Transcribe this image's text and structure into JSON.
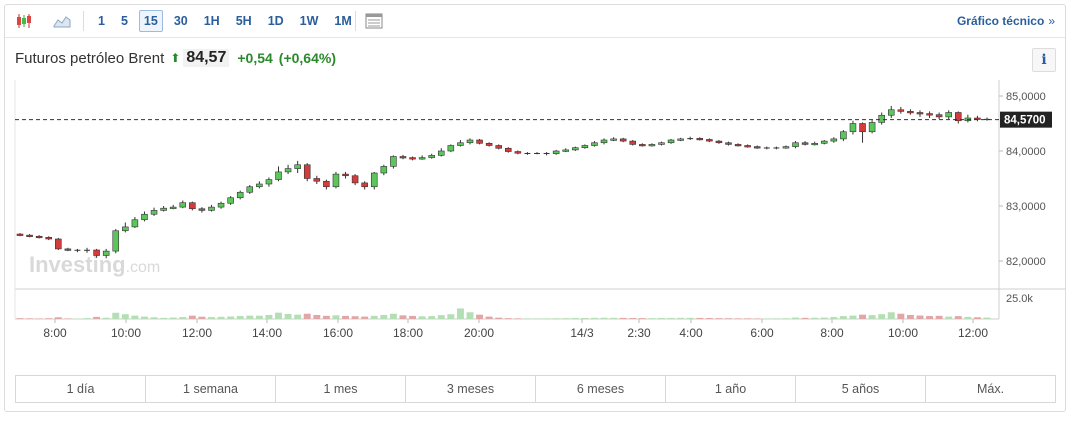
{
  "toolbar": {
    "intervals": [
      "1",
      "5",
      "15",
      "30",
      "1H",
      "5H",
      "1D",
      "1W",
      "1M"
    ],
    "active_interval": "15",
    "technical_link": "Gráfico técnico",
    "technical_arrow": "»"
  },
  "header": {
    "instrument": "Futuros petróleo Brent",
    "price": "84,57",
    "change": "+0,54",
    "change_pct": "(+0,64%)",
    "info_label": "i"
  },
  "watermark": {
    "brand": "Investing",
    "suffix": ".com"
  },
  "chart_data": {
    "type": "candlestick",
    "x_ticks": [
      "8:00",
      "10:00",
      "12:00",
      "14:00",
      "16:00",
      "18:00",
      "20:00",
      "14/3",
      "2:30",
      "4:00",
      "6:00",
      "8:00",
      "10:00",
      "12:00"
    ],
    "y_ticks": [
      "85,0000",
      "84,0000",
      "83,0000",
      "82,0000"
    ],
    "y_tick_values": [
      85,
      84,
      83,
      82
    ],
    "ylim": [
      81.55,
      85.3
    ],
    "last_price_label": "84,5700",
    "last_price": 84.57,
    "volume_tick": "25.0k",
    "volume_tick_value": 25000,
    "colors": {
      "up": "#5cc55c",
      "down": "#d23c3c",
      "doji": "#444444",
      "vol_up": "#b4dfb4",
      "vol_down": "#e3a6a6"
    },
    "candles": [
      [
        82.49,
        82.47,
        82.51,
        82.45
      ],
      [
        82.47,
        82.45,
        82.49,
        82.43
      ],
      [
        82.45,
        82.43,
        82.47,
        82.41
      ],
      [
        82.43,
        82.4,
        82.45,
        82.38
      ],
      [
        82.4,
        82.22,
        82.42,
        82.2
      ],
      [
        82.22,
        82.2,
        82.24,
        82.18
      ],
      [
        82.2,
        82.19,
        82.22,
        82.16
      ],
      [
        82.19,
        82.2,
        82.24,
        82.15
      ],
      [
        82.2,
        82.1,
        82.22,
        82.06
      ],
      [
        82.1,
        82.18,
        82.22,
        82.05
      ],
      [
        82.18,
        82.55,
        82.58,
        82.14
      ],
      [
        82.55,
        82.62,
        82.7,
        82.52
      ],
      [
        82.62,
        82.75,
        82.8,
        82.6
      ],
      [
        82.75,
        82.85,
        82.9,
        82.72
      ],
      [
        82.85,
        82.92,
        82.97,
        82.82
      ],
      [
        82.92,
        82.96,
        83.0,
        82.9
      ],
      [
        82.96,
        82.98,
        83.02,
        82.94
      ],
      [
        82.98,
        83.06,
        83.1,
        82.96
      ],
      [
        83.06,
        82.95,
        83.08,
        82.92
      ],
      [
        82.95,
        82.92,
        82.98,
        82.88
      ],
      [
        82.92,
        82.98,
        83.02,
        82.9
      ],
      [
        82.98,
        83.05,
        83.08,
        82.95
      ],
      [
        83.05,
        83.15,
        83.18,
        83.02
      ],
      [
        83.15,
        83.25,
        83.28,
        83.12
      ],
      [
        83.25,
        83.35,
        83.38,
        83.22
      ],
      [
        83.35,
        83.4,
        83.45,
        83.32
      ],
      [
        83.4,
        83.48,
        83.52,
        83.35
      ],
      [
        83.48,
        83.62,
        83.72,
        83.45
      ],
      [
        83.62,
        83.68,
        83.75,
        83.58
      ],
      [
        83.68,
        83.75,
        83.82,
        83.6
      ],
      [
        83.75,
        83.5,
        83.78,
        83.45
      ],
      [
        83.5,
        83.45,
        83.55,
        83.4
      ],
      [
        83.45,
        83.35,
        83.48,
        83.3
      ],
      [
        83.35,
        83.58,
        83.62,
        83.32
      ],
      [
        83.58,
        83.55,
        83.62,
        83.5
      ],
      [
        83.55,
        83.42,
        83.58,
        83.38
      ],
      [
        83.42,
        83.35,
        83.45,
        83.3
      ],
      [
        83.35,
        83.6,
        83.62,
        83.3
      ],
      [
        83.6,
        83.72,
        83.75,
        83.56
      ],
      [
        83.72,
        83.9,
        83.92,
        83.68
      ],
      [
        83.9,
        83.88,
        83.93,
        83.85
      ],
      [
        83.88,
        83.86,
        83.9,
        83.83
      ],
      [
        83.86,
        83.88,
        83.92,
        83.84
      ],
      [
        83.88,
        83.92,
        83.95,
        83.86
      ],
      [
        83.92,
        84.0,
        84.05,
        83.9
      ],
      [
        84.0,
        84.1,
        84.12,
        83.98
      ],
      [
        84.1,
        84.15,
        84.2,
        84.08
      ],
      [
        84.15,
        84.2,
        84.23,
        84.12
      ],
      [
        84.2,
        84.14,
        84.22,
        84.12
      ],
      [
        84.14,
        84.1,
        84.16,
        84.08
      ],
      [
        84.1,
        84.05,
        84.12,
        84.03
      ],
      [
        84.05,
        83.99,
        84.07,
        83.97
      ],
      [
        83.99,
        83.96,
        84.01,
        83.94
      ],
      [
        83.96,
        83.95,
        83.98,
        83.93
      ],
      [
        83.95,
        83.96,
        83.98,
        83.94
      ],
      [
        83.96,
        83.95,
        83.98,
        83.92
      ],
      [
        83.95,
        84.0,
        84.02,
        83.93
      ],
      [
        84.0,
        84.02,
        84.05,
        83.98
      ],
      [
        84.02,
        84.06,
        84.08,
        84.0
      ],
      [
        84.06,
        84.1,
        84.12,
        84.04
      ],
      [
        84.1,
        84.15,
        84.18,
        84.08
      ],
      [
        84.15,
        84.2,
        84.23,
        84.12
      ],
      [
        84.2,
        84.22,
        84.25,
        84.18
      ],
      [
        84.22,
        84.18,
        84.24,
        84.16
      ],
      [
        84.18,
        84.12,
        84.2,
        84.1
      ],
      [
        84.12,
        84.1,
        84.14,
        84.08
      ],
      [
        84.1,
        84.12,
        84.14,
        84.08
      ],
      [
        84.12,
        84.15,
        84.17,
        84.1
      ],
      [
        84.15,
        84.2,
        84.22,
        84.13
      ],
      [
        84.2,
        84.22,
        84.24,
        84.18
      ],
      [
        84.22,
        84.23,
        84.26,
        84.2
      ],
      [
        84.23,
        84.21,
        84.25,
        84.19
      ],
      [
        84.21,
        84.18,
        84.23,
        84.16
      ],
      [
        84.18,
        84.15,
        84.2,
        84.13
      ],
      [
        84.15,
        84.12,
        84.17,
        84.1
      ],
      [
        84.12,
        84.1,
        84.14,
        84.08
      ],
      [
        84.1,
        84.08,
        84.12,
        84.06
      ],
      [
        84.08,
        84.06,
        84.1,
        84.04
      ],
      [
        84.06,
        84.05,
        84.08,
        84.03
      ],
      [
        84.05,
        84.06,
        84.08,
        84.03
      ],
      [
        84.06,
        84.08,
        84.1,
        84.04
      ],
      [
        84.08,
        84.15,
        84.18,
        84.05
      ],
      [
        84.15,
        84.12,
        84.18,
        84.1
      ],
      [
        84.12,
        84.14,
        84.17,
        84.1
      ],
      [
        84.14,
        84.18,
        84.2,
        84.12
      ],
      [
        84.18,
        84.22,
        84.25,
        84.15
      ],
      [
        84.22,
        84.35,
        84.38,
        84.18
      ],
      [
        84.35,
        84.5,
        84.55,
        84.3
      ],
      [
        84.5,
        84.35,
        84.52,
        84.15
      ],
      [
        84.35,
        84.52,
        84.56,
        84.32
      ],
      [
        84.52,
        84.65,
        84.7,
        84.48
      ],
      [
        84.65,
        84.75,
        84.82,
        84.6
      ],
      [
        84.75,
        84.72,
        84.8,
        84.68
      ],
      [
        84.72,
        84.7,
        84.76,
        84.66
      ],
      [
        84.7,
        84.68,
        84.74,
        84.62
      ],
      [
        84.68,
        84.66,
        84.72,
        84.6
      ],
      [
        84.66,
        84.62,
        84.7,
        84.58
      ],
      [
        84.62,
        84.7,
        84.74,
        84.58
      ],
      [
        84.7,
        84.55,
        84.72,
        84.5
      ],
      [
        84.55,
        84.6,
        84.66,
        84.52
      ],
      [
        84.6,
        84.58,
        84.64,
        84.54
      ],
      [
        84.58,
        84.57,
        84.61,
        84.55
      ]
    ],
    "volumes": [
      900,
      700,
      600,
      800,
      1800,
      600,
      500,
      900,
      2200,
      1300,
      6500,
      5000,
      3500,
      2500,
      1800,
      1200,
      1500,
      2000,
      3500,
      2400,
      2000,
      2300,
      2600,
      3100,
      3500,
      3400,
      4200,
      6600,
      5200,
      4500,
      5500,
      4200,
      3300,
      3800,
      3200,
      2900,
      2500,
      3300,
      4200,
      5500,
      3800,
      3200,
      2800,
      3000,
      4000,
      5000,
      11000,
      7000,
      4500,
      2500,
      1400,
      900,
      700,
      600,
      600,
      700,
      800,
      900,
      1000,
      1100,
      1200,
      1300,
      1200,
      1100,
      1000,
      900,
      900,
      1000,
      1100,
      1200,
      1200,
      1100,
      1000,
      900,
      800,
      700,
      700,
      600,
      600,
      700,
      800,
      1500,
      1200,
      1300,
      1500,
      2000,
      3000,
      3500,
      4500,
      4000,
      5000,
      7000,
      5500,
      4200,
      3600,
      3100,
      3300,
      2500,
      3000,
      2200,
      1800,
      1500
    ]
  },
  "ranges": [
    "1 día",
    "1 semana",
    "1 mes",
    "3 meses",
    "6 meses",
    "1 año",
    "5 años",
    "Máx."
  ]
}
